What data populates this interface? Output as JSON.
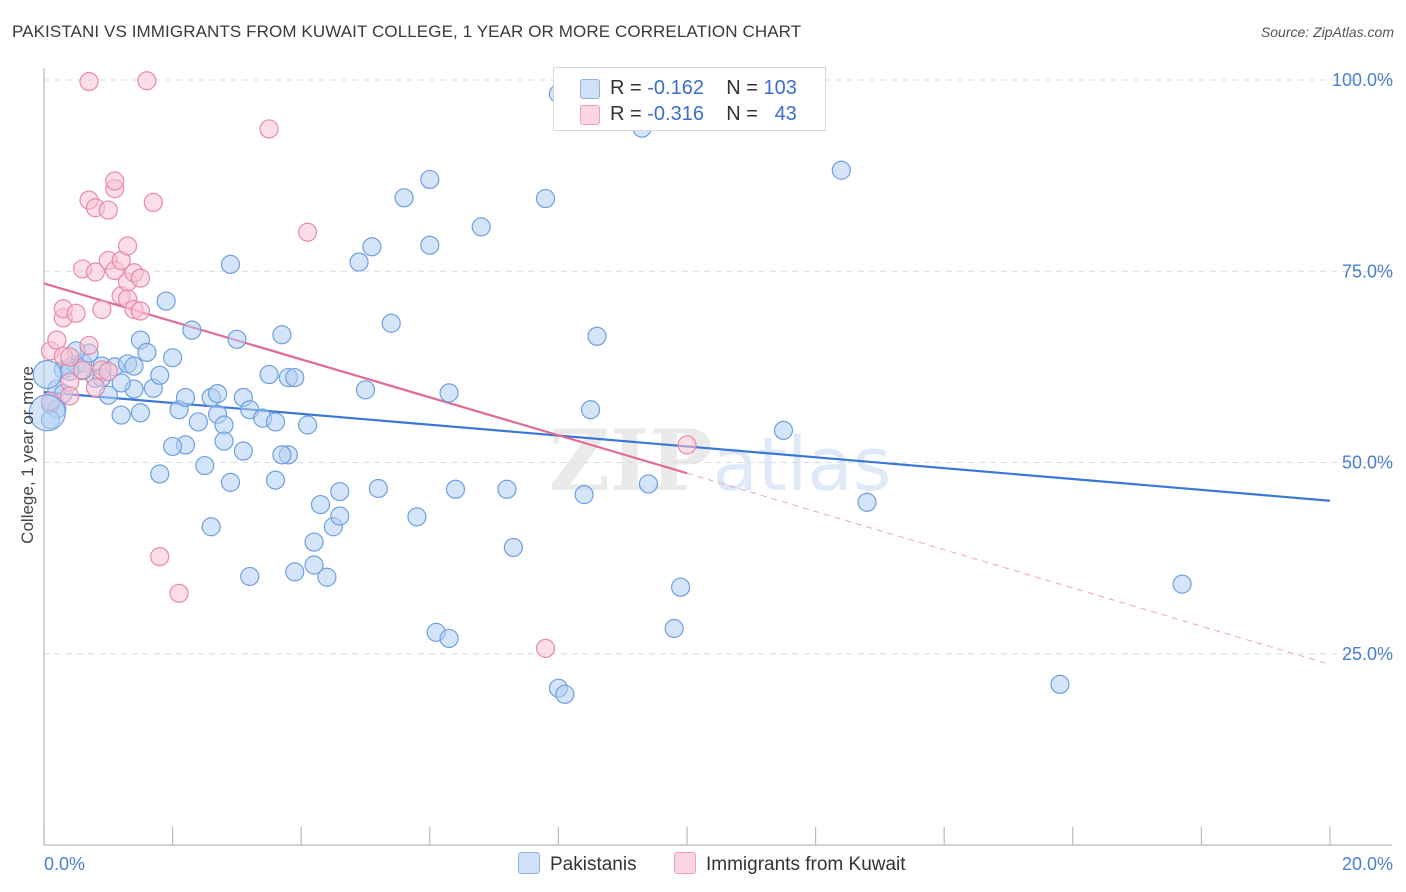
{
  "title": "PAKISTANI VS IMMIGRANTS FROM KUWAIT COLLEGE, 1 YEAR OR MORE CORRELATION CHART",
  "source": "Source: ZipAtlas.com",
  "watermark": "ZIPatlas",
  "legend": {
    "rows": [
      {
        "r_label": "R =",
        "r_value": "-0.162",
        "n_label": "N =",
        "n_value": "103",
        "color": "#a9c8f2"
      },
      {
        "r_label": "R =",
        "r_value": "-0.316",
        "n_label": "N =",
        "n_value": "43",
        "color": "#f7b9cc"
      }
    ]
  },
  "bottom_legend": [
    {
      "label": "Pakistanis",
      "color": "#a9c8f2"
    },
    {
      "label": "Immigrants from Kuwait",
      "color": "#f7b9cc"
    }
  ],
  "chart_data": {
    "type": "scatter",
    "title": "PAKISTANI VS IMMIGRANTS FROM KUWAIT COLLEGE, 1 YEAR OR MORE CORRELATION CHART",
    "xlabel": "",
    "ylabel": "College, 1 year or more",
    "xlim": [
      0,
      20
    ],
    "ylim": [
      0,
      100
    ],
    "x_tick_labels": [
      "0.0%",
      "20.0%"
    ],
    "y_ticks": [
      25,
      50,
      75,
      100
    ],
    "y_tick_labels": [
      "25.0%",
      "50.0%",
      "75.0%",
      "100.0%"
    ],
    "grid": true,
    "legend_position": "top-center",
    "series": [
      {
        "name": "Pakistanis",
        "color": "#6f9fe0",
        "fill": "#b3cff4",
        "trend": {
          "x": [
            0,
            20
          ],
          "y": [
            59.2,
            45.0
          ]
        },
        "points": [
          [
            0.3,
            62.1
          ],
          [
            0.4,
            62.4
          ],
          [
            0.5,
            62.8
          ],
          [
            0.6,
            63.0
          ],
          [
            0.7,
            64.3
          ],
          [
            0.8,
            61.0
          ],
          [
            0.9,
            62.6
          ],
          [
            0.6,
            62.0
          ],
          [
            1.0,
            58.8
          ],
          [
            1.1,
            62.5
          ],
          [
            0.2,
            59.6
          ],
          [
            0.3,
            59.0
          ],
          [
            0.5,
            64.6
          ],
          [
            1.2,
            56.2
          ],
          [
            1.4,
            59.6
          ],
          [
            1.5,
            66.0
          ],
          [
            1.3,
            62.9
          ],
          [
            1.6,
            64.4
          ],
          [
            1.7,
            59.7
          ],
          [
            1.8,
            61.4
          ],
          [
            1.9,
            71.1
          ],
          [
            2.0,
            63.7
          ],
          [
            1.5,
            56.5
          ],
          [
            1.8,
            48.5
          ],
          [
            2.1,
            56.9
          ],
          [
            2.2,
            58.5
          ],
          [
            2.2,
            52.3
          ],
          [
            2.0,
            52.1
          ],
          [
            2.3,
            67.3
          ],
          [
            2.4,
            55.3
          ],
          [
            2.5,
            49.6
          ],
          [
            2.6,
            41.6
          ],
          [
            2.6,
            58.5
          ],
          [
            2.7,
            59.0
          ],
          [
            2.7,
            56.3
          ],
          [
            2.8,
            54.9
          ],
          [
            2.8,
            52.8
          ],
          [
            2.9,
            47.4
          ],
          [
            2.9,
            75.9
          ],
          [
            3.0,
            66.1
          ],
          [
            3.1,
            58.5
          ],
          [
            3.1,
            51.5
          ],
          [
            3.2,
            56.9
          ],
          [
            3.2,
            35.1
          ],
          [
            3.4,
            55.8
          ],
          [
            3.5,
            61.5
          ],
          [
            3.6,
            55.3
          ],
          [
            3.6,
            47.7
          ],
          [
            3.7,
            66.7
          ],
          [
            3.8,
            51.0
          ],
          [
            3.8,
            61.1
          ],
          [
            3.9,
            35.7
          ],
          [
            3.9,
            61.1
          ],
          [
            3.7,
            51.0
          ],
          [
            4.1,
            54.9
          ],
          [
            4.2,
            36.6
          ],
          [
            4.3,
            44.5
          ],
          [
            4.2,
            39.6
          ],
          [
            4.4,
            35.0
          ],
          [
            4.5,
            41.6
          ],
          [
            4.6,
            46.2
          ],
          [
            4.6,
            43.0
          ],
          [
            4.9,
            76.2
          ],
          [
            5.0,
            59.5
          ],
          [
            5.1,
            78.2
          ],
          [
            5.2,
            46.6
          ],
          [
            5.4,
            68.2
          ],
          [
            5.6,
            84.6
          ],
          [
            5.8,
            42.9
          ],
          [
            6.0,
            78.4
          ],
          [
            6.0,
            87.0
          ],
          [
            6.1,
            27.8
          ],
          [
            6.3,
            27.0
          ],
          [
            6.3,
            59.1
          ],
          [
            6.4,
            46.5
          ],
          [
            6.8,
            80.8
          ],
          [
            7.2,
            46.5
          ],
          [
            7.3,
            38.9
          ],
          [
            7.8,
            84.5
          ],
          [
            8.0,
            98.2
          ],
          [
            8.0,
            20.5
          ],
          [
            8.1,
            19.7
          ],
          [
            8.4,
            45.8
          ],
          [
            8.5,
            56.9
          ],
          [
            8.6,
            66.5
          ],
          [
            9.3,
            93.7
          ],
          [
            9.4,
            47.2
          ],
          [
            9.8,
            28.3
          ],
          [
            9.9,
            33.7
          ],
          [
            10.0,
            98.1
          ],
          [
            10.4,
            97.9
          ],
          [
            11.5,
            54.2
          ],
          [
            12.4,
            88.2
          ],
          [
            12.8,
            44.8
          ],
          [
            15.8,
            21.0
          ],
          [
            17.7,
            34.1
          ],
          [
            0.1,
            57.6
          ],
          [
            0.2,
            57.0
          ],
          [
            0.9,
            61.1
          ],
          [
            1.4,
            62.6
          ],
          [
            0.4,
            61.9
          ],
          [
            1.2,
            60.4
          ],
          [
            0.1,
            55.6
          ]
        ]
      },
      {
        "name": "Immigrants from Kuwait",
        "color": "#e88aa6",
        "fill": "#f7c3d3",
        "trend": {
          "x": [
            0,
            10
          ],
          "y": [
            73.4,
            48.6
          ]
        },
        "trend_extension": {
          "x": [
            10,
            20
          ],
          "y": [
            48.6,
            23.6
          ]
        },
        "points": [
          [
            0.1,
            64.6
          ],
          [
            0.2,
            66.0
          ],
          [
            0.3,
            68.9
          ],
          [
            0.3,
            70.1
          ],
          [
            0.3,
            63.9
          ],
          [
            0.4,
            60.5
          ],
          [
            0.4,
            58.7
          ],
          [
            0.5,
            69.5
          ],
          [
            0.6,
            62.1
          ],
          [
            0.6,
            75.3
          ],
          [
            0.7,
            65.3
          ],
          [
            0.7,
            84.3
          ],
          [
            0.8,
            83.3
          ],
          [
            0.8,
            74.9
          ],
          [
            0.8,
            59.8
          ],
          [
            0.9,
            62.1
          ],
          [
            0.9,
            70.0
          ],
          [
            1.0,
            83.0
          ],
          [
            1.0,
            76.4
          ],
          [
            1.1,
            75.1
          ],
          [
            1.1,
            85.8
          ],
          [
            1.1,
            86.8
          ],
          [
            1.2,
            71.8
          ],
          [
            1.2,
            76.4
          ],
          [
            1.3,
            71.4
          ],
          [
            1.3,
            78.3
          ],
          [
            1.3,
            73.6
          ],
          [
            1.4,
            70.0
          ],
          [
            1.4,
            74.8
          ],
          [
            1.5,
            69.8
          ],
          [
            1.5,
            74.1
          ],
          [
            1.6,
            99.9
          ],
          [
            1.7,
            84.0
          ],
          [
            1.8,
            37.7
          ],
          [
            2.1,
            32.9
          ],
          [
            3.5,
            93.6
          ],
          [
            4.1,
            80.1
          ],
          [
            7.8,
            25.7
          ],
          [
            10.0,
            52.3
          ],
          [
            0.1,
            58.0
          ],
          [
            1.0,
            61.9
          ],
          [
            0.4,
            63.8
          ],
          [
            0.7,
            99.8
          ]
        ]
      }
    ]
  }
}
